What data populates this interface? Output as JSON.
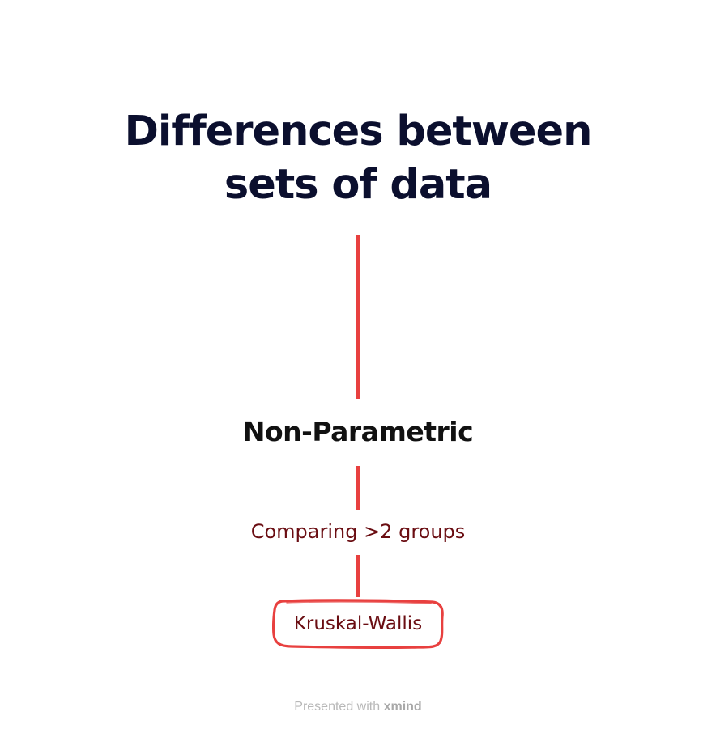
{
  "map": {
    "root": {
      "line1": "Differences between",
      "line2": "sets of data"
    },
    "branch": {
      "label": "Non-Parametric",
      "subtopic": {
        "label": "Comparing >2 groups",
        "leaf": {
          "label": "Kruskal-Wallis"
        }
      }
    }
  },
  "footer": {
    "prefix": "Presented with",
    "brand": "xmind"
  },
  "colors": {
    "connector": "#e8403f",
    "root_text": "#0b0f2e",
    "branch_text": "#111111",
    "subtopic_text": "#6a0d12",
    "footer_text": "#b8b8b8"
  }
}
